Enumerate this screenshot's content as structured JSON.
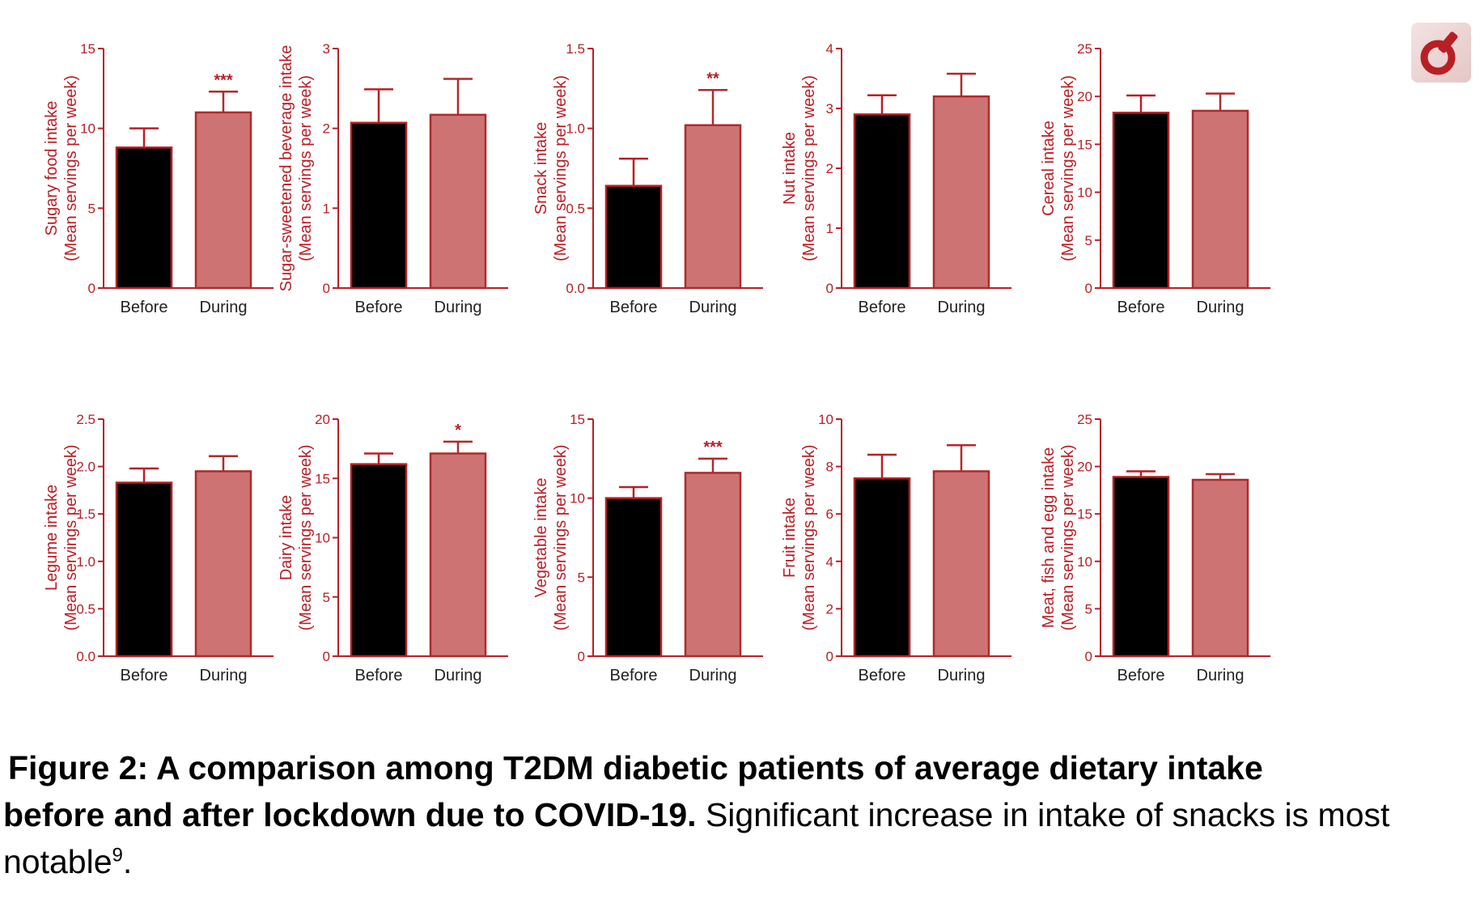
{
  "colors": {
    "accent": "#b81f25",
    "before": "#000000",
    "during": "#cd7373",
    "during_edge": "#b02a2a"
  },
  "logo": {
    "icon": "journal-logo-icon"
  },
  "chart_data": [
    {
      "type": "bar",
      "ylabel": "Sugary food intake",
      "ylabel2": "(Mean servings per week)",
      "categories": [
        "Before",
        "During"
      ],
      "values": [
        8.8,
        11.0
      ],
      "errors": [
        1.2,
        1.3
      ],
      "ylim": [
        0,
        15
      ],
      "ticks": [
        "0",
        "5",
        "10",
        "15"
      ],
      "tick_values": [
        0,
        5,
        10,
        15
      ],
      "significance": "***"
    },
    {
      "type": "bar",
      "ylabel": "Sugar-sweetened beverage intake",
      "ylabel2": "(Mean servings per week)",
      "categories": [
        "Before",
        "During"
      ],
      "values": [
        2.07,
        2.17
      ],
      "errors": [
        0.42,
        0.45
      ],
      "ylim": [
        0,
        3
      ],
      "ticks": [
        "0",
        "1",
        "2",
        "3"
      ],
      "tick_values": [
        0,
        1,
        2,
        3
      ],
      "significance": ""
    },
    {
      "type": "bar",
      "ylabel": "Snack intake",
      "ylabel2": "(Mean servings per week)",
      "categories": [
        "Before",
        "During"
      ],
      "values": [
        0.64,
        1.02
      ],
      "errors": [
        0.17,
        0.22
      ],
      "ylim": [
        0,
        1.5
      ],
      "ticks": [
        "0.0",
        "0.5",
        "1.0",
        "1.5"
      ],
      "tick_values": [
        0,
        0.5,
        1.0,
        1.5
      ],
      "significance": "**"
    },
    {
      "type": "bar",
      "ylabel": "Nut intake",
      "ylabel2": "(Mean servings per week)",
      "categories": [
        "Before",
        "During"
      ],
      "values": [
        2.9,
        3.2
      ],
      "errors": [
        0.32,
        0.38
      ],
      "ylim": [
        0,
        4
      ],
      "ticks": [
        "0",
        "1",
        "2",
        "3",
        "4"
      ],
      "tick_values": [
        0,
        1,
        2,
        3,
        4
      ],
      "significance": ""
    },
    {
      "type": "bar",
      "ylabel": "Cereal intake",
      "ylabel2": "(Mean servings per week)",
      "categories": [
        "Before",
        "During"
      ],
      "values": [
        18.3,
        18.5
      ],
      "errors": [
        1.8,
        1.8
      ],
      "ylim": [
        0,
        25
      ],
      "ticks": [
        "0",
        "5",
        "10",
        "15",
        "20",
        "25"
      ],
      "tick_values": [
        0,
        5,
        10,
        15,
        20,
        25
      ],
      "significance": ""
    },
    {
      "type": "bar",
      "ylabel": "Legume intake",
      "ylabel2": "(Mean servings per week)",
      "categories": [
        "Before",
        "During"
      ],
      "values": [
        1.83,
        1.95
      ],
      "errors": [
        0.15,
        0.16
      ],
      "ylim": [
        0,
        2.5
      ],
      "ticks": [
        "0.0",
        "0.5",
        "1.0",
        "1.5",
        "2.0",
        "2.5"
      ],
      "tick_values": [
        0,
        0.5,
        1.0,
        1.5,
        2.0,
        2.5
      ],
      "significance": ""
    },
    {
      "type": "bar",
      "ylabel": "Dairy intake",
      "ylabel2": "(Mean servings per week)",
      "categories": [
        "Before",
        "During"
      ],
      "values": [
        16.2,
        17.1
      ],
      "errors": [
        0.9,
        1.0
      ],
      "ylim": [
        0,
        20
      ],
      "ticks": [
        "0",
        "5",
        "10",
        "15",
        "20"
      ],
      "tick_values": [
        0,
        5,
        10,
        15,
        20
      ],
      "significance": "*"
    },
    {
      "type": "bar",
      "ylabel": "Vegetable intake",
      "ylabel2": "(Mean servings per week)",
      "categories": [
        "Before",
        "During"
      ],
      "values": [
        10.0,
        11.6
      ],
      "errors": [
        0.7,
        0.9
      ],
      "ylim": [
        0,
        15
      ],
      "ticks": [
        "0",
        "5",
        "10",
        "15"
      ],
      "tick_values": [
        0,
        5,
        10,
        15
      ],
      "significance": "***"
    },
    {
      "type": "bar",
      "ylabel": "Fruit intake",
      "ylabel2": "(Mean servings per week)",
      "categories": [
        "Before",
        "During"
      ],
      "values": [
        7.5,
        7.8
      ],
      "errors": [
        1.0,
        1.1
      ],
      "ylim": [
        0,
        10
      ],
      "ticks": [
        "0",
        "2",
        "4",
        "6",
        "8",
        "10"
      ],
      "tick_values": [
        0,
        2,
        4,
        6,
        8,
        10
      ],
      "significance": ""
    },
    {
      "type": "bar",
      "ylabel": "Meat, fish and egg intake",
      "ylabel2": "(Mean servings per week)",
      "categories": [
        "Before",
        "During"
      ],
      "values": [
        18.9,
        18.6
      ],
      "errors": [
        0.6,
        0.6
      ],
      "ylim": [
        0,
        25
      ],
      "ticks": [
        "0",
        "5",
        "10",
        "15",
        "20",
        "25"
      ],
      "tick_values": [
        0,
        5,
        10,
        15,
        20,
        25
      ],
      "significance": ""
    }
  ],
  "caption": {
    "bold_line1": "Figure 2: A comparison among T2DM diabetic patients of average dietary intake",
    "bold_line2": "before and after lockdown due to COVID-19.",
    "normal": " Significant increase in intake of snacks is most notable",
    "superscript": "9",
    "end": "."
  }
}
